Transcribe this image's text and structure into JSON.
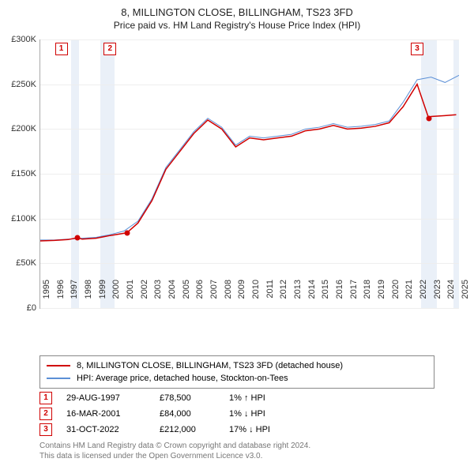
{
  "title": "8, MILLINGTON CLOSE, BILLINGHAM, TS23 3FD",
  "subtitle": "Price paid vs. HM Land Registry's House Price Index (HPI)",
  "chart": {
    "type": "line",
    "background_color": "#ffffff",
    "grid_color": "#eeeeee",
    "axis_color": "#aaaaaa",
    "ylim": [
      0,
      300000
    ],
    "ytick_step": 50000,
    "yticks": [
      "£0",
      "£50K",
      "£100K",
      "£150K",
      "£200K",
      "£250K",
      "£300K"
    ],
    "xlim": [
      1995,
      2025
    ],
    "xticks": [
      "1995",
      "1996",
      "1997",
      "1998",
      "1999",
      "2000",
      "2001",
      "2002",
      "2003",
      "2004",
      "2005",
      "2006",
      "2007",
      "2008",
      "2009",
      "2010",
      "2011",
      "2012",
      "2013",
      "2014",
      "2015",
      "2016",
      "2017",
      "2018",
      "2019",
      "2020",
      "2021",
      "2022",
      "2023",
      "2024",
      "2025"
    ],
    "shaded_bands": [
      {
        "from": 1997.2,
        "to": 1997.8,
        "color": "#e8eef7"
      },
      {
        "from": 1999.3,
        "to": 2000.3,
        "color": "#e8eef7"
      },
      {
        "from": 2022.3,
        "to": 2023.4,
        "color": "#e8eef7"
      },
      {
        "from": 2024.6,
        "to": 2025.0,
        "color": "#e8eef7"
      }
    ],
    "series": [
      {
        "name": "property",
        "label": "8, MILLINGTON CLOSE, BILLINGHAM, TS23 3FD (detached house)",
        "color": "#d00000",
        "line_width": 1.5,
        "data": [
          [
            1995,
            75000
          ],
          [
            1996,
            75500
          ],
          [
            1997,
            76500
          ],
          [
            1997.66,
            78500
          ],
          [
            1998,
            77000
          ],
          [
            1999,
            78000
          ],
          [
            2000,
            81000
          ],
          [
            2001.2,
            84000
          ],
          [
            2002,
            95000
          ],
          [
            2003,
            120000
          ],
          [
            2004,
            155000
          ],
          [
            2005,
            175000
          ],
          [
            2006,
            195000
          ],
          [
            2007,
            210000
          ],
          [
            2008,
            200000
          ],
          [
            2009,
            180000
          ],
          [
            2010,
            190000
          ],
          [
            2011,
            188000
          ],
          [
            2012,
            190000
          ],
          [
            2013,
            192000
          ],
          [
            2014,
            198000
          ],
          [
            2015,
            200000
          ],
          [
            2016,
            204000
          ],
          [
            2017,
            200000
          ],
          [
            2018,
            201000
          ],
          [
            2019,
            203000
          ],
          [
            2020,
            207000
          ],
          [
            2021,
            225000
          ],
          [
            2022,
            250000
          ],
          [
            2022.83,
            212000
          ],
          [
            2023,
            214000
          ],
          [
            2024,
            215000
          ],
          [
            2024.8,
            216000
          ]
        ]
      },
      {
        "name": "hpi",
        "label": "HPI: Average price, detached house, Stockton-on-Tees",
        "color": "#5b8fd6",
        "line_width": 1,
        "data": [
          [
            1995,
            76000
          ],
          [
            1996,
            76000
          ],
          [
            1997,
            77000
          ],
          [
            1998,
            78000
          ],
          [
            1999,
            79000
          ],
          [
            2000,
            82000
          ],
          [
            2001,
            86000
          ],
          [
            2002,
            97000
          ],
          [
            2003,
            122000
          ],
          [
            2004,
            157000
          ],
          [
            2005,
            177000
          ],
          [
            2006,
            197000
          ],
          [
            2007,
            212000
          ],
          [
            2008,
            202000
          ],
          [
            2009,
            182000
          ],
          [
            2010,
            192000
          ],
          [
            2011,
            190000
          ],
          [
            2012,
            192000
          ],
          [
            2013,
            194000
          ],
          [
            2014,
            200000
          ],
          [
            2015,
            202000
          ],
          [
            2016,
            206000
          ],
          [
            2017,
            202000
          ],
          [
            2018,
            203000
          ],
          [
            2019,
            205000
          ],
          [
            2020,
            209000
          ],
          [
            2021,
            230000
          ],
          [
            2022,
            255000
          ],
          [
            2023,
            258000
          ],
          [
            2024,
            252000
          ],
          [
            2025,
            260000
          ]
        ]
      }
    ],
    "sale_points": [
      {
        "n": "1",
        "year": 1997.66,
        "price": 78500,
        "color": "#d00000"
      },
      {
        "n": "2",
        "year": 2001.2,
        "price": 84000,
        "color": "#d00000"
      },
      {
        "n": "3",
        "year": 2022.83,
        "price": 212000,
        "color": "#d00000"
      }
    ],
    "marker_boxes": [
      {
        "n": "1",
        "x": 1996.5
      },
      {
        "n": "2",
        "x": 2000.0
      },
      {
        "n": "3",
        "x": 2022.0
      }
    ]
  },
  "legend": {
    "items": [
      {
        "color": "#d00000",
        "label": "8, MILLINGTON CLOSE, BILLINGHAM, TS23 3FD (detached house)"
      },
      {
        "color": "#5b8fd6",
        "label": "HPI: Average price, detached house, Stockton-on-Tees"
      }
    ]
  },
  "sales": [
    {
      "n": "1",
      "date": "29-AUG-1997",
      "price": "£78,500",
      "diff": "1% ↑ HPI"
    },
    {
      "n": "2",
      "date": "16-MAR-2001",
      "price": "£84,000",
      "diff": "1% ↓ HPI"
    },
    {
      "n": "3",
      "date": "31-OCT-2022",
      "price": "£212,000",
      "diff": "17% ↓ HPI"
    }
  ],
  "footer": {
    "line1": "Contains HM Land Registry data © Crown copyright and database right 2024.",
    "line2": "This data is licensed under the Open Government Licence v3.0."
  }
}
